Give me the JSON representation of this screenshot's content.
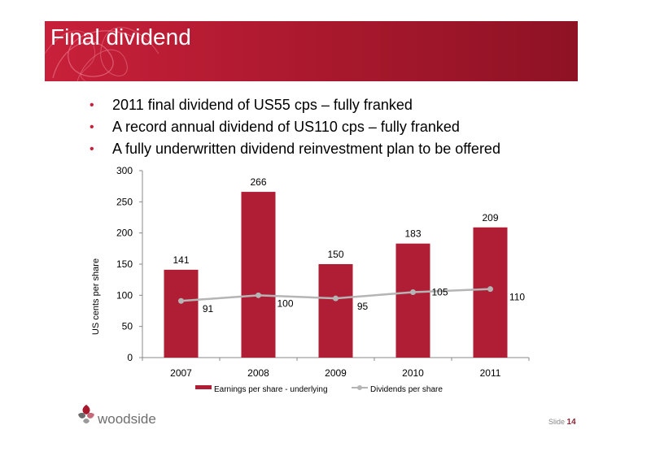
{
  "slide": {
    "title": "Final dividend",
    "bullets": [
      "2011 final dividend of US55 cps – fully franked",
      "A record annual dividend of US110 cps – fully franked",
      "A fully underwritten dividend reinvestment plan to be offered"
    ],
    "logo_text": "woodside",
    "slide_label": "Slide",
    "slide_number": "14",
    "accent_color": "#c8203a"
  },
  "chart_data": {
    "type": "bar",
    "categories": [
      "2007",
      "2008",
      "2009",
      "2010",
      "2011"
    ],
    "series": [
      {
        "name": "Earnings per share - underlying",
        "kind": "bar",
        "color": "#b01e35",
        "values": [
          141,
          266,
          150,
          183,
          209
        ]
      },
      {
        "name": "Dividends per share",
        "kind": "line",
        "color": "#b5b5b5",
        "values": [
          91,
          100,
          95,
          105,
          110
        ]
      }
    ],
    "ylabel": "US cents per share",
    "ylim": [
      0,
      300
    ],
    "yticks": [
      "0",
      "50",
      "100",
      "150",
      "200",
      "250",
      "300"
    ],
    "grid": false,
    "legend": "bottom"
  }
}
